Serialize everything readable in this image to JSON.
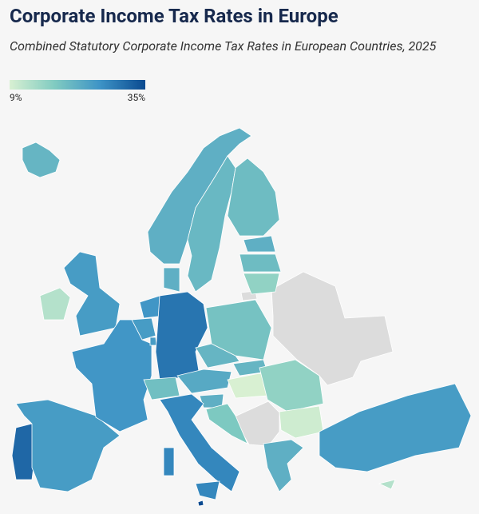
{
  "chart_data": {
    "type": "choropleth",
    "title": "Corporate Income Tax Rates in Europe",
    "subtitle": "Combined Statutory Corporate Income Tax Rates in European Countries, 2025",
    "colorbar": {
      "lim": [
        9,
        35
      ],
      "ticks": [
        {
          "value": 9,
          "label": "9%"
        },
        {
          "value": 35,
          "label": "35%"
        }
      ],
      "colors": [
        "#d8f0d2",
        "#80cbc1",
        "#3d93c6",
        "#0a4a90"
      ]
    },
    "values": [
      21,
      22,
      20.6,
      20,
      22,
      20,
      16,
      22,
      25,
      12.5,
      25.8,
      25,
      31.5,
      25,
      25.8,
      24.9,
      29.9,
      19.6,
      23,
      21,
      19,
      21,
      9,
      22,
      18,
      16,
      10,
      27.8,
      22,
      25,
      12.5,
      35
    ],
    "missing_color": "#dcdcdc"
  }
}
